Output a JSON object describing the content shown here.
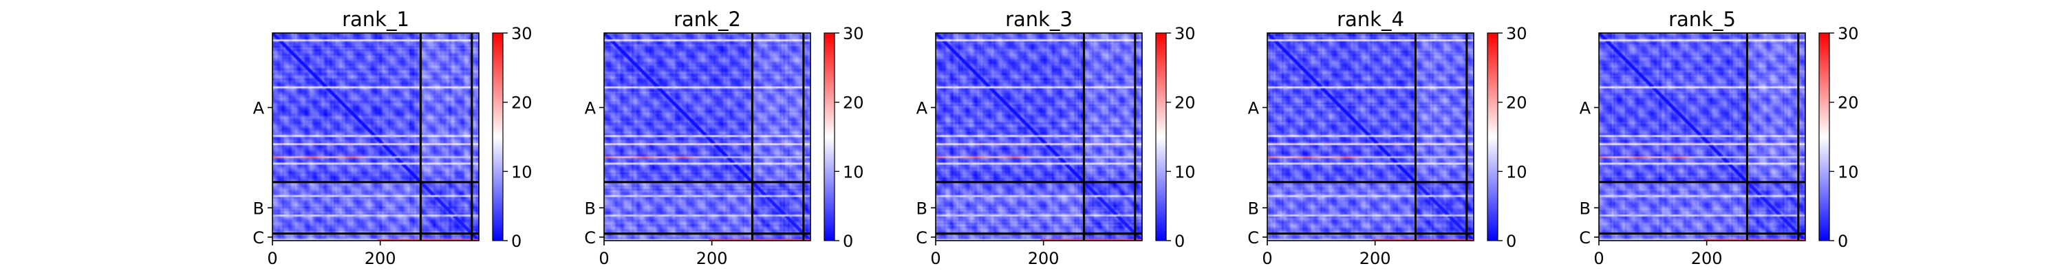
{
  "colors": {
    "cmap_low": "#0000ff",
    "cmap_mid": "#ffffff",
    "cmap_high": "#ff0000",
    "background": "#ffffff",
    "block_lines": "#000000"
  },
  "chart_data": [
    {
      "type": "heatmap",
      "title": "rank_1",
      "x": {
        "lim": [
          0,
          383
        ],
        "ticks": [
          0,
          200
        ]
      },
      "y": {
        "categories": [
          {
            "label": "A",
            "start": 0,
            "end": 275
          },
          {
            "label": "B",
            "start": 275,
            "end": 370
          },
          {
            "label": "C",
            "start": 370,
            "end": 383
          }
        ]
      },
      "colorbar": {
        "lim": [
          0,
          30
        ],
        "ticks": [
          0,
          10,
          20,
          30
        ]
      },
      "cmap": "bwr",
      "block_boundaries": [
        275,
        370
      ],
      "hot_rows": [
        {
          "row": 226,
          "max": 24
        },
        {
          "row": 379,
          "max": 25
        }
      ],
      "bright_rows": [
        {
          "row": 12,
          "value": 15
        },
        {
          "row": 98,
          "value": 15
        },
        {
          "row": 188,
          "value": 14
        },
        {
          "row": 203,
          "value": 16
        },
        {
          "row": 238,
          "value": 15
        },
        {
          "row": 298,
          "value": 13
        },
        {
          "row": 335,
          "value": 13
        }
      ]
    },
    {
      "type": "heatmap",
      "title": "rank_2",
      "x": {
        "lim": [
          0,
          383
        ],
        "ticks": [
          0,
          200
        ]
      },
      "y": {
        "categories": [
          {
            "label": "A",
            "start": 0,
            "end": 275
          },
          {
            "label": "B",
            "start": 275,
            "end": 370
          },
          {
            "label": "C",
            "start": 370,
            "end": 383
          }
        ]
      },
      "colorbar": {
        "lim": [
          0,
          30
        ],
        "ticks": [
          0,
          10,
          20,
          30
        ]
      },
      "cmap": "bwr",
      "block_boundaries": [
        275,
        370
      ],
      "hot_rows": [
        {
          "row": 226,
          "max": 24
        },
        {
          "row": 379,
          "max": 25
        }
      ],
      "bright_rows": [
        {
          "row": 12,
          "value": 15
        },
        {
          "row": 98,
          "value": 15
        },
        {
          "row": 188,
          "value": 14
        },
        {
          "row": 203,
          "value": 16
        },
        {
          "row": 238,
          "value": 15
        },
        {
          "row": 298,
          "value": 13
        },
        {
          "row": 335,
          "value": 13
        }
      ]
    },
    {
      "type": "heatmap",
      "title": "rank_3",
      "x": {
        "lim": [
          0,
          383
        ],
        "ticks": [
          0,
          200
        ]
      },
      "y": {
        "categories": [
          {
            "label": "A",
            "start": 0,
            "end": 275
          },
          {
            "label": "B",
            "start": 275,
            "end": 370
          },
          {
            "label": "C",
            "start": 370,
            "end": 383
          }
        ]
      },
      "colorbar": {
        "lim": [
          0,
          30
        ],
        "ticks": [
          0,
          10,
          20,
          30
        ]
      },
      "cmap": "bwr",
      "block_boundaries": [
        275,
        370
      ],
      "hot_rows": [
        {
          "row": 226,
          "max": 24
        },
        {
          "row": 379,
          "max": 25
        }
      ],
      "bright_rows": [
        {
          "row": 12,
          "value": 15
        },
        {
          "row": 98,
          "value": 15
        },
        {
          "row": 188,
          "value": 14
        },
        {
          "row": 203,
          "value": 16
        },
        {
          "row": 238,
          "value": 15
        },
        {
          "row": 298,
          "value": 13
        },
        {
          "row": 335,
          "value": 13
        }
      ]
    },
    {
      "type": "heatmap",
      "title": "rank_4",
      "x": {
        "lim": [
          0,
          383
        ],
        "ticks": [
          0,
          200
        ]
      },
      "y": {
        "categories": [
          {
            "label": "A",
            "start": 0,
            "end": 275
          },
          {
            "label": "B",
            "start": 275,
            "end": 370
          },
          {
            "label": "C",
            "start": 370,
            "end": 383
          }
        ]
      },
      "colorbar": {
        "lim": [
          0,
          30
        ],
        "ticks": [
          0,
          10,
          20,
          30
        ]
      },
      "cmap": "bwr",
      "block_boundaries": [
        275,
        370
      ],
      "hot_rows": [
        {
          "row": 226,
          "max": 24
        },
        {
          "row": 379,
          "max": 25
        }
      ],
      "bright_rows": [
        {
          "row": 12,
          "value": 15
        },
        {
          "row": 98,
          "value": 15
        },
        {
          "row": 188,
          "value": 14
        },
        {
          "row": 203,
          "value": 16
        },
        {
          "row": 238,
          "value": 15
        },
        {
          "row": 298,
          "value": 13
        },
        {
          "row": 335,
          "value": 13
        }
      ]
    },
    {
      "type": "heatmap",
      "title": "rank_5",
      "x": {
        "lim": [
          0,
          383
        ],
        "ticks": [
          0,
          200
        ]
      },
      "y": {
        "categories": [
          {
            "label": "A",
            "start": 0,
            "end": 275
          },
          {
            "label": "B",
            "start": 275,
            "end": 370
          },
          {
            "label": "C",
            "start": 370,
            "end": 383
          }
        ]
      },
      "colorbar": {
        "lim": [
          0,
          30
        ],
        "ticks": [
          0,
          10,
          20,
          30
        ]
      },
      "cmap": "bwr",
      "block_boundaries": [
        275,
        370
      ],
      "hot_rows": [
        {
          "row": 226,
          "max": 24
        },
        {
          "row": 379,
          "max": 25
        }
      ],
      "bright_rows": [
        {
          "row": 12,
          "value": 15
        },
        {
          "row": 98,
          "value": 15
        },
        {
          "row": 188,
          "value": 14
        },
        {
          "row": 203,
          "value": 16
        },
        {
          "row": 238,
          "value": 15
        },
        {
          "row": 298,
          "value": 13
        },
        {
          "row": 335,
          "value": 13
        }
      ]
    }
  ]
}
